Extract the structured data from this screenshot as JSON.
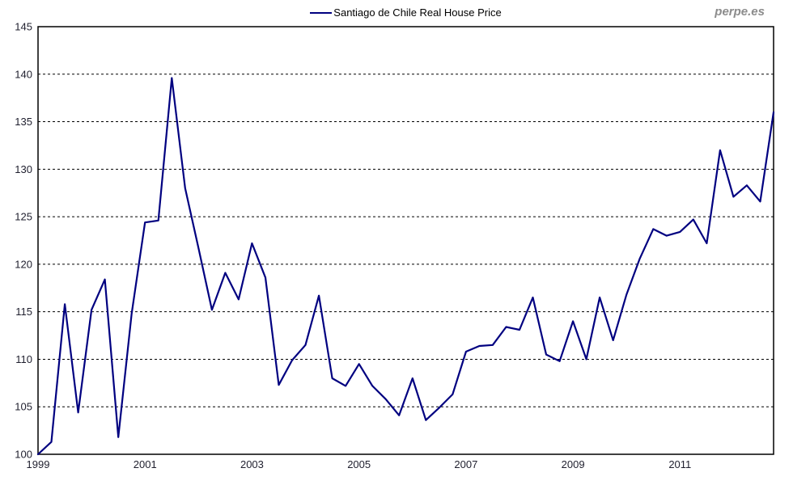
{
  "watermark": "perpe.es",
  "legend": {
    "label": "Santiago de Chile Real House Price",
    "line_color": "#000080"
  },
  "colors": {
    "series_line": "#000080",
    "gridline": "#000000",
    "plot_border": "#000000",
    "tick_text": "#1f1f2e",
    "watermark_text": "#8c8c8c",
    "background": "#ffffff"
  },
  "chart_data": {
    "type": "line",
    "title": "Santiago de Chile Real House Price",
    "legend_position": "top-center",
    "grid": "horizontal-dashed",
    "ylim": [
      100,
      145
    ],
    "y_ticks": [
      100,
      105,
      110,
      115,
      120,
      125,
      130,
      135,
      140,
      145
    ],
    "x_tick_labels": [
      "1999",
      "2001",
      "2003",
      "2005",
      "2007",
      "2009",
      "2011"
    ],
    "x_ticks_every_n_points": 8,
    "x": [
      "1999 Q1",
      "1999 Q2",
      "1999 Q3",
      "1999 Q4",
      "2000 Q1",
      "2000 Q2",
      "2000 Q3",
      "2000 Q4",
      "2001 Q1",
      "2001 Q2",
      "2001 Q3",
      "2001 Q4",
      "2002 Q1",
      "2002 Q2",
      "2002 Q3",
      "2002 Q4",
      "2003 Q1",
      "2003 Q2",
      "2003 Q3",
      "2003 Q4",
      "2004 Q1",
      "2004 Q2",
      "2004 Q3",
      "2004 Q4",
      "2005 Q1",
      "2005 Q2",
      "2005 Q3",
      "2005 Q4",
      "2006 Q1",
      "2006 Q2",
      "2006 Q3",
      "2006 Q4",
      "2007 Q1",
      "2007 Q2",
      "2007 Q3",
      "2007 Q4",
      "2008 Q1",
      "2008 Q2",
      "2008 Q3",
      "2008 Q4",
      "2009 Q1",
      "2009 Q2",
      "2009 Q3",
      "2009 Q4",
      "2010 Q1",
      "2010 Q2",
      "2010 Q3",
      "2010 Q4",
      "2011 Q1",
      "2011 Q2",
      "2011 Q3",
      "2011 Q4",
      "2012 Q1",
      "2012 Q2",
      "2012 Q3",
      "2012 Q4"
    ],
    "series": [
      {
        "name": "Santiago de Chile Real House Price",
        "color": "#000080",
        "values": [
          100.0,
          101.3,
          115.8,
          104.4,
          115.2,
          118.4,
          101.8,
          114.8,
          124.4,
          124.6,
          139.6,
          128.0,
          121.7,
          115.2,
          119.1,
          116.3,
          122.2,
          118.6,
          107.3,
          109.9,
          111.5,
          116.7,
          108.0,
          107.2,
          109.5,
          107.2,
          105.8,
          104.1,
          108.0,
          103.6,
          104.9,
          106.3,
          110.8,
          111.4,
          111.5,
          113.4,
          113.1,
          116.5,
          110.5,
          109.8,
          114.0,
          110.0,
          116.5,
          112.0,
          116.8,
          120.6,
          123.7,
          123.0,
          123.4,
          124.7,
          122.2,
          132.0,
          127.1,
          128.3,
          126.6,
          136.0
        ]
      }
    ]
  }
}
